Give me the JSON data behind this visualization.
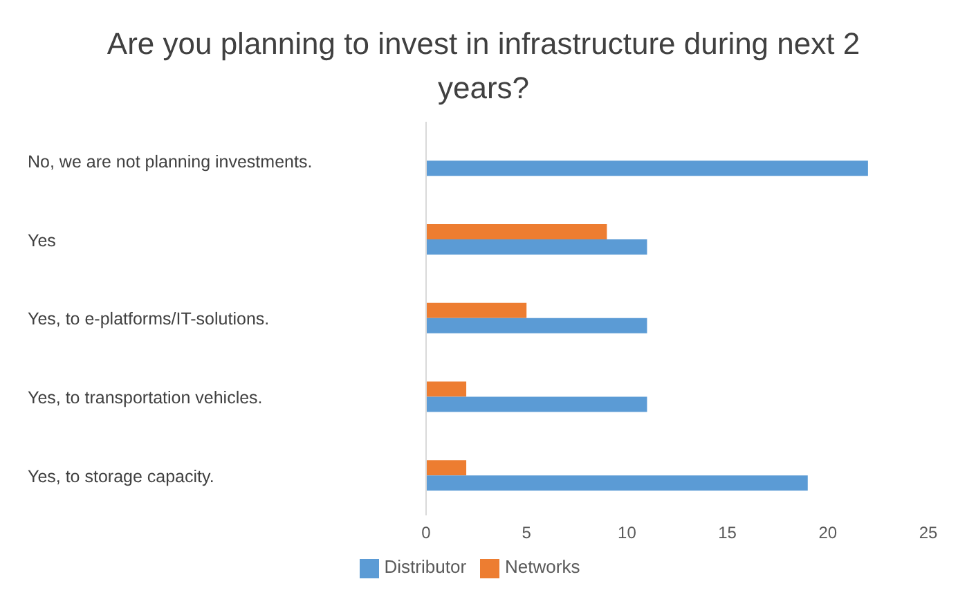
{
  "chart_data": {
    "type": "bar",
    "orientation": "horizontal",
    "title": "Are you planning to invest in infrastructure during next 2 years?",
    "categories": [
      "No, we are not planning investments.",
      "Yes",
      "Yes, to e-platforms/IT-solutions.",
      "Yes, to transportation vehicles.",
      "Yes, to storage capacity."
    ],
    "series": [
      {
        "name": "Distributor",
        "color": "#5b9bd5",
        "values": [
          22,
          11,
          11,
          11,
          19
        ]
      },
      {
        "name": "Networks",
        "color": "#ed7d31",
        "values": [
          null,
          9,
          5,
          2,
          2
        ]
      }
    ],
    "xlim": [
      0,
      25
    ],
    "xticks": [
      0,
      5,
      10,
      15,
      20,
      25
    ],
    "grid": false,
    "legend": "bottom"
  }
}
